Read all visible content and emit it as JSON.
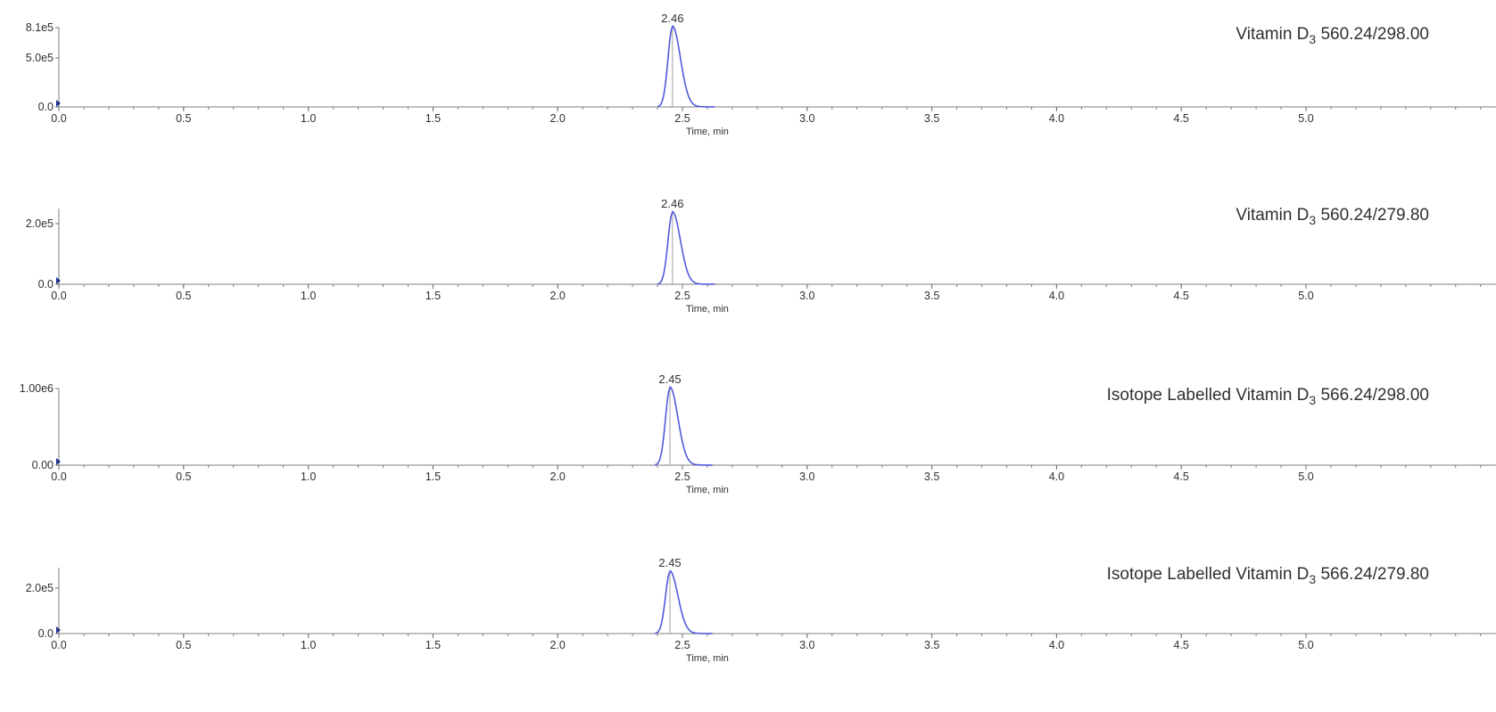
{
  "chart_data": [
    {
      "type": "line",
      "title": "Vitamin D₃ 560.24/298.00",
      "title_parts": {
        "prefix": "Vitamin D",
        "subscript": "3",
        "suffix": "560.24/298.00"
      },
      "xlabel": "Time, min",
      "ylabel": "",
      "xlim": [
        0.0,
        5.5
      ],
      "ylim": [
        0,
        810000
      ],
      "x_ticks": [
        0.0,
        0.5,
        1.0,
        1.5,
        2.0,
        2.5,
        3.0,
        3.5,
        4.0,
        4.5,
        5.0
      ],
      "x_tick_labels": [
        "0.0",
        "0.5",
        "1.0",
        "1.5",
        "2.0",
        "2.5",
        "3.0",
        "3.5",
        "4.0",
        "4.5",
        "5.0"
      ],
      "y_tick_labels": [
        {
          "value": 0,
          "label": "0.0"
        },
        {
          "value": 500000,
          "label": "5.0e5"
        },
        {
          "value": 810000,
          "label": "8.1e5"
        }
      ],
      "peak": {
        "rt": 2.46,
        "label": "2.46",
        "height": 810000,
        "start": 2.4,
        "end": 2.63
      },
      "line_color": "#4f5ad8",
      "marker_color": "#b0b0b0"
    },
    {
      "type": "line",
      "title": "Vitamin D₃ 560.24/279.80",
      "title_parts": {
        "prefix": "Vitamin D",
        "subscript": "3",
        "suffix": "560.24/279.80"
      },
      "xlabel": "Time, min",
      "ylabel": "",
      "xlim": [
        0.0,
        5.5
      ],
      "ylim": [
        0,
        250000
      ],
      "x_ticks": [
        0.0,
        0.5,
        1.0,
        1.5,
        2.0,
        2.5,
        3.0,
        3.5,
        4.0,
        4.5,
        5.0
      ],
      "x_tick_labels": [
        "0.0",
        "0.5",
        "1.0",
        "1.5",
        "2.0",
        "2.5",
        "3.0",
        "3.5",
        "4.0",
        "4.5",
        "5.0"
      ],
      "y_tick_labels": [
        {
          "value": 0,
          "label": "0.0"
        },
        {
          "value": 200000,
          "label": "2.0e5"
        }
      ],
      "peak": {
        "rt": 2.46,
        "label": "2.46",
        "height": 235000,
        "start": 2.4,
        "end": 2.63
      },
      "line_color": "#4f5ad8",
      "marker_color": "#b0b0b0"
    },
    {
      "type": "line",
      "title": "Isotope Labelled Vitamin D₃ 566.24/298.00",
      "title_parts": {
        "prefix": "Isotope Labelled Vitamin D",
        "subscript": "3",
        "suffix": "566.24/298.00"
      },
      "xlabel": "Time, min",
      "ylabel": "",
      "xlim": [
        0.0,
        5.5
      ],
      "ylim": [
        0,
        1000000
      ],
      "x_ticks": [
        0.0,
        0.5,
        1.0,
        1.5,
        2.0,
        2.5,
        3.0,
        3.5,
        4.0,
        4.5,
        5.0
      ],
      "x_tick_labels": [
        "0.0",
        "0.5",
        "1.0",
        "1.5",
        "2.0",
        "2.5",
        "3.0",
        "3.5",
        "4.0",
        "4.5",
        "5.0"
      ],
      "y_tick_labels": [
        {
          "value": 0,
          "label": "0.00"
        },
        {
          "value": 1000000,
          "label": "1.00e6"
        }
      ],
      "peak": {
        "rt": 2.45,
        "label": "2.45",
        "height": 1000000,
        "start": 2.39,
        "end": 2.62
      },
      "line_color": "#4f5ad8",
      "marker_color": "#b0b0b0"
    },
    {
      "type": "line",
      "title": "Isotope Labelled Vitamin D₃ 566.24/279.80",
      "title_parts": {
        "prefix": "Isotope Labelled Vitamin D",
        "subscript": "3",
        "suffix": "566.24/279.80"
      },
      "xlabel": "Time, min",
      "ylabel": "",
      "xlim": [
        0.0,
        5.5
      ],
      "ylim": [
        0,
        290000
      ],
      "x_ticks": [
        0.0,
        0.5,
        1.0,
        1.5,
        2.0,
        2.5,
        3.0,
        3.5,
        4.0,
        4.5,
        5.0
      ],
      "x_tick_labels": [
        "0.0",
        "0.5",
        "1.0",
        "1.5",
        "2.0",
        "2.5",
        "3.0",
        "3.5",
        "4.0",
        "4.5",
        "5.0"
      ],
      "y_tick_labels": [
        {
          "value": 0,
          "label": "0.0"
        },
        {
          "value": 200000,
          "label": "2.0e5"
        }
      ],
      "peak": {
        "rt": 2.45,
        "label": "2.45",
        "height": 270000,
        "start": 2.39,
        "end": 2.62
      },
      "line_color": "#4f5ad8",
      "marker_color": "#b0b0b0"
    }
  ]
}
